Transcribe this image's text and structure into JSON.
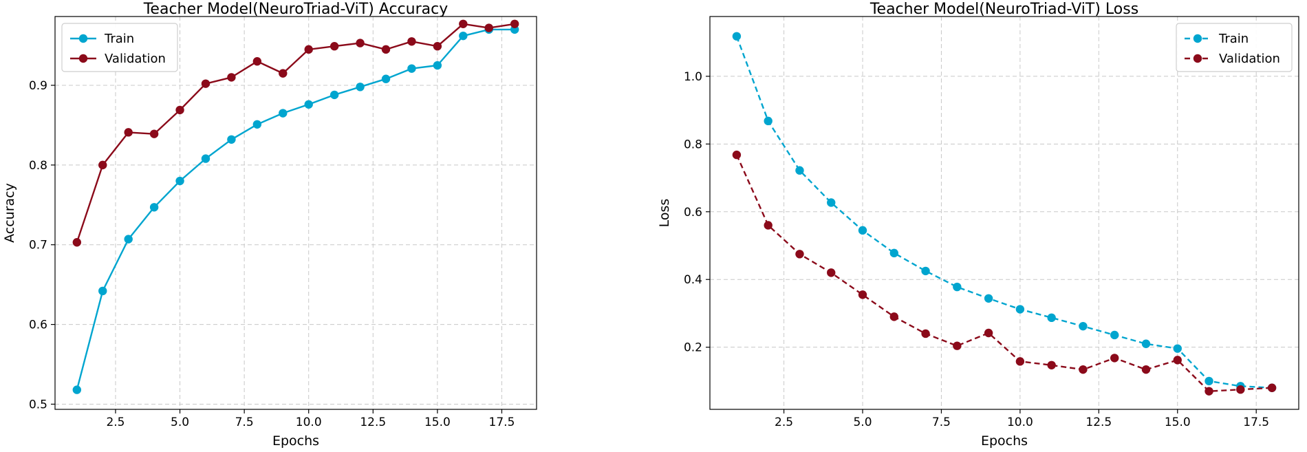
{
  "chart_data": [
    {
      "type": "line",
      "title": "Teacher Model(NeuroTriad-ViT) Accuracy",
      "xlabel": "Epochs",
      "ylabel": "Accuracy",
      "xlim": [
        0.15,
        18.85
      ],
      "ylim": [
        0.4935,
        0.9863
      ],
      "xticks": [
        2.5,
        5.0,
        7.5,
        10.0,
        12.5,
        15.0,
        17.5
      ],
      "xtick_labels": [
        "2.5",
        "5.0",
        "7.5",
        "10.0",
        "12.5",
        "15.0",
        "17.5"
      ],
      "yticks": [
        0.5,
        0.6,
        0.7,
        0.8,
        0.9
      ],
      "ytick_labels": [
        "0.5",
        "0.6",
        "0.7",
        "0.8",
        "0.9"
      ],
      "grid": true,
      "legend_position": "top-left",
      "x": [
        1,
        2,
        3,
        4,
        5,
        6,
        7,
        8,
        9,
        10,
        11,
        12,
        13,
        14,
        15,
        16,
        17,
        18
      ],
      "series": [
        {
          "name": "Train",
          "color": "#00A5CF",
          "dashed": false,
          "values": [
            0.518,
            0.642,
            0.707,
            0.747,
            0.78,
            0.808,
            0.832,
            0.851,
            0.865,
            0.876,
            0.888,
            0.898,
            0.908,
            0.921,
            0.925,
            0.962,
            0.97,
            0.97
          ]
        },
        {
          "name": "Validation",
          "color": "#8B0A1A",
          "dashed": false,
          "values": [
            0.703,
            0.8,
            0.841,
            0.839,
            0.869,
            0.902,
            0.91,
            0.93,
            0.915,
            0.945,
            0.949,
            0.953,
            0.945,
            0.955,
            0.949,
            0.977,
            0.972,
            0.977
          ]
        }
      ]
    },
    {
      "type": "line",
      "title": "Teacher Model(NeuroTriad-ViT) Loss",
      "xlabel": "Epochs",
      "ylabel": "Loss",
      "xlim": [
        0.15,
        18.85
      ],
      "ylim": [
        0.0165,
        1.1765
      ],
      "xticks": [
        2.5,
        5.0,
        7.5,
        10.0,
        12.5,
        15.0,
        17.5
      ],
      "xtick_labels": [
        "2.5",
        "5.0",
        "7.5",
        "10.0",
        "12.5",
        "15.0",
        "17.5"
      ],
      "yticks": [
        0.2,
        0.4,
        0.6,
        0.8,
        1.0
      ],
      "ytick_labels": [
        "0.2",
        "0.4",
        "0.6",
        "0.8",
        "1.0"
      ],
      "grid": true,
      "legend_position": "top-right",
      "x": [
        1,
        2,
        3,
        4,
        5,
        6,
        7,
        8,
        9,
        10,
        11,
        12,
        13,
        14,
        15,
        16,
        17,
        18
      ],
      "series": [
        {
          "name": "Train",
          "color": "#00A5CF",
          "dashed": true,
          "values": [
            1.118,
            0.868,
            0.722,
            0.627,
            0.545,
            0.478,
            0.425,
            0.378,
            0.344,
            0.312,
            0.287,
            0.262,
            0.236,
            0.21,
            0.196,
            0.1,
            0.085,
            0.08
          ]
        },
        {
          "name": "Validation",
          "color": "#8B0A1A",
          "dashed": true,
          "values": [
            0.768,
            0.56,
            0.475,
            0.42,
            0.355,
            0.29,
            0.24,
            0.204,
            0.242,
            0.158,
            0.147,
            0.134,
            0.168,
            0.134,
            0.162,
            0.07,
            0.075,
            0.08
          ]
        }
      ]
    }
  ]
}
